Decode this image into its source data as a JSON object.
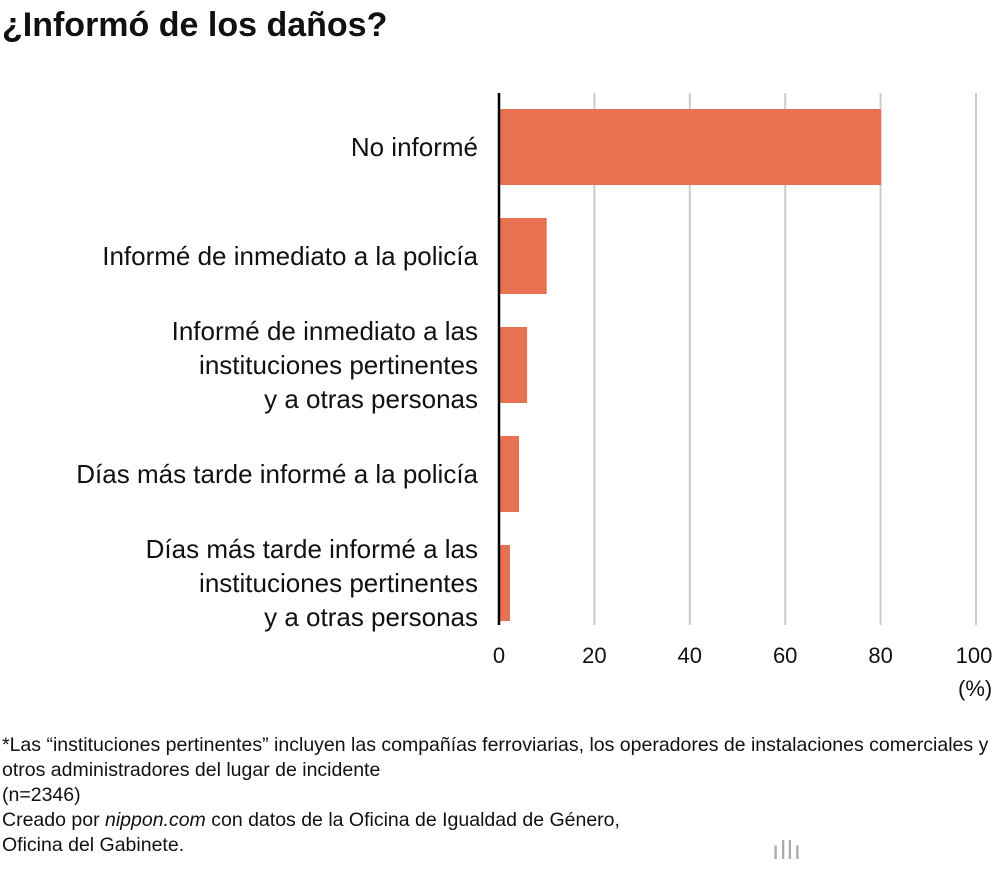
{
  "chart_data": {
    "type": "bar",
    "orientation": "horizontal",
    "title": "¿Informó de los daños?",
    "categories": [
      "No informé",
      "Informé de inmediato a la policía",
      "Informé de inmediato a las\ninstituciones pertinentes\ny a otras personas",
      "Días más tarde informé a la policía",
      "Días más tarde informé a las\ninstituciones pertinentes\ny a otras personas"
    ],
    "values": [
      80.1,
      10.0,
      5.9,
      4.2,
      2.3
    ],
    "xlim": [
      0,
      100
    ],
    "xticks": [
      0,
      20,
      40,
      60,
      80,
      100
    ],
    "xlabel": "(%)",
    "grid": true,
    "bar_color": "#e87152"
  },
  "footnote": {
    "note": "*Las “instituciones pertinentes” incluyen las compañías ferroviarias, los operadores de instalaciones comerciales y otros administradores del lugar de incidente",
    "n": "(n=2346)",
    "credit_prefix": "Creado por ",
    "credit_site": "nippon.com",
    "credit_suffix": " con datos de la Oficina de Igualdad de Género, Oficina del Gabinete."
  },
  "logo": {
    "name": "nippon",
    "dot": ".",
    "com": "com"
  }
}
